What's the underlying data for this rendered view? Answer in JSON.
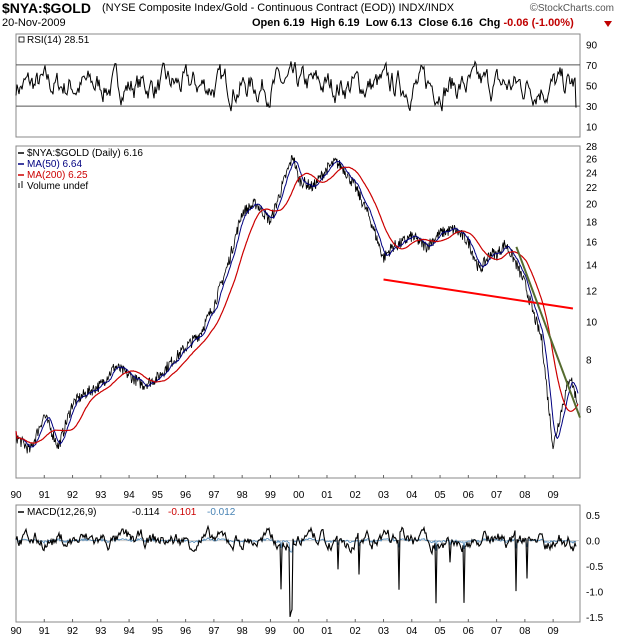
{
  "header": {
    "symbol": "$NYA:$GOLD",
    "description": "(NYSE Composite Index/Gold - Continuous Contract (EOD)) INDX/INDX",
    "date": "20-Nov-2009",
    "open_label": "Open",
    "open": "6.19",
    "high_label": "High",
    "high": "6.19",
    "low_label": "Low",
    "low": "6.13",
    "close_label": "Close",
    "close": "6.16",
    "chg_label": "Chg",
    "chg": "-0.06 (-1.00%)",
    "copyright_symbol": "©",
    "copyright": "StockCharts.com"
  },
  "chart_data": [
    {
      "type": "line",
      "panel": "rsi",
      "legend": [
        {
          "text": "RSI(14) 28.51",
          "color": "#000000"
        }
      ],
      "ylim": [
        0,
        100
      ],
      "y_ticks": [
        90,
        70,
        50,
        30,
        10
      ],
      "reference_lines": [
        70,
        30
      ],
      "series": [
        {
          "name": "RSI(14)",
          "last": 28.51,
          "range": [
            10,
            85
          ],
          "color": "#000000"
        }
      ]
    },
    {
      "type": "line",
      "panel": "price",
      "scale": "log",
      "legend": [
        {
          "text": "$NYA:$GOLD (Daily) 6.16",
          "color": "#000000"
        },
        {
          "text": "MA(50) 6.64",
          "color": "#000080"
        },
        {
          "text": "MA(200) 6.25",
          "color": "#cc0000"
        },
        {
          "text": "Volume undef",
          "color": "#000000"
        }
      ],
      "ylim": [
        4.0,
        28.0
      ],
      "y_ticks": [
        28,
        26,
        24,
        22,
        20,
        18,
        16,
        14,
        12,
        10,
        8,
        6
      ],
      "x": [
        1990.0,
        1990.5,
        1991.0,
        1991.5,
        1992.0,
        1992.5,
        1993.0,
        1993.5,
        1994.0,
        1994.5,
        1995.0,
        1995.5,
        1996.0,
        1996.5,
        1997.0,
        1997.5,
        1998.0,
        1998.5,
        1999.0,
        1999.5,
        1999.8,
        2000.0,
        2000.5,
        2001.0,
        2001.3,
        2001.6,
        2002.0,
        2002.5,
        2003.0,
        2003.3,
        2003.6,
        2004.0,
        2004.5,
        2005.0,
        2005.5,
        2006.0,
        2006.4,
        2006.8,
        2007.0,
        2007.3,
        2007.6,
        2008.0,
        2008.3,
        2008.6,
        2008.8,
        2009.0,
        2009.3,
        2009.6,
        2009.88
      ],
      "series": [
        {
          "name": "$NYA:$GOLD",
          "color": "#000000",
          "values": [
            5.1,
            4.7,
            5.8,
            4.8,
            6.2,
            6.6,
            6.9,
            7.7,
            7.3,
            6.9,
            7.2,
            7.9,
            8.6,
            9.3,
            11.0,
            14.0,
            19.0,
            20.0,
            18.0,
            23.0,
            26.5,
            23.0,
            22.0,
            24.5,
            25.5,
            24.5,
            22.0,
            18.5,
            14.5,
            15.5,
            15.8,
            16.5,
            15.5,
            16.8,
            17.2,
            16.0,
            13.5,
            15.0,
            14.8,
            15.8,
            14.5,
            12.5,
            10.5,
            9.0,
            6.5,
            4.8,
            6.0,
            7.3,
            6.16
          ]
        },
        {
          "name": "MA(50)",
          "color": "#000080",
          "last": 6.64
        },
        {
          "name": "MA(200)",
          "color": "#cc0000",
          "last": 6.25
        }
      ],
      "trendlines": [
        {
          "color": "#ff0000",
          "from": [
            2003.0,
            12.8
          ],
          "to": [
            2009.7,
            10.8
          ]
        },
        {
          "color": "#556b2f",
          "from": [
            2007.7,
            15.5
          ],
          "to": [
            2009.95,
            5.7
          ]
        }
      ],
      "x_ticks": [
        "90",
        "91",
        "92",
        "93",
        "94",
        "95",
        "96",
        "97",
        "98",
        "99",
        "00",
        "01",
        "02",
        "03",
        "04",
        "05",
        "06",
        "07",
        "08",
        "09"
      ]
    },
    {
      "type": "line",
      "panel": "macd",
      "legend": [
        {
          "text": "MACD(12,26,9)",
          "color": "#000000"
        },
        {
          "text": "-0.114",
          "color": "#000000"
        },
        {
          "text": "-0.101",
          "color": "#cc0000"
        },
        {
          "text": "-0.012",
          "color": "#4682b4"
        }
      ],
      "ylim": [
        -1.6,
        0.7
      ],
      "y_ticks": [
        "0.5",
        "0.0",
        "-0.5",
        "-1.0",
        "-1.5"
      ],
      "series": [
        {
          "name": "MACD",
          "color": "#000000",
          "last": -0.114
        },
        {
          "name": "Signal",
          "color": "#cc0000",
          "last": -0.101
        },
        {
          "name": "Histogram",
          "color": "#4682b4",
          "last": -0.012
        }
      ],
      "x_ticks": [
        "90",
        "91",
        "92",
        "93",
        "94",
        "95",
        "96",
        "97",
        "98",
        "99",
        "00",
        "01",
        "02",
        "03",
        "04",
        "05",
        "06",
        "07",
        "08",
        "09"
      ]
    }
  ]
}
